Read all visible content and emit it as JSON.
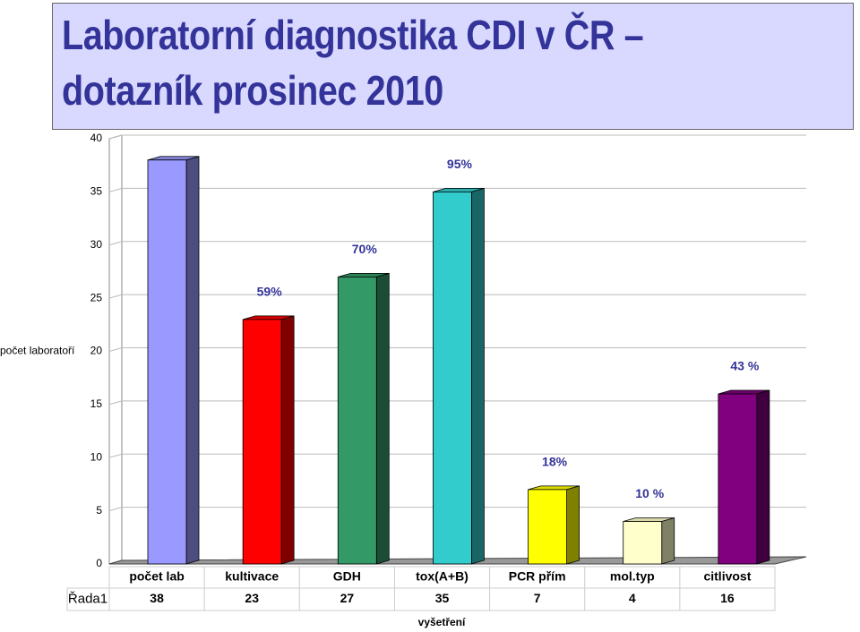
{
  "chart_data": {
    "type": "bar3d",
    "title": [
      "Laboratorní diagnostika CDI v ČR –",
      "dotazník prosinec 2010"
    ],
    "y_label": "počet laboratoří",
    "x_label": "vyšetření",
    "categories": [
      "počet lab",
      "kultivace",
      "GDH",
      "tox(A+B)",
      "PCR přím",
      "mol.typ",
      "citlivost"
    ],
    "series": [
      {
        "name": "Řada1",
        "values": [
          38,
          23,
          27,
          35,
          7,
          4,
          16
        ],
        "colors": [
          "#9999ff",
          "#ff0000",
          "#339966",
          "#33cccc",
          "#ffff00",
          "#ffffcc",
          "#800080"
        ]
      }
    ],
    "annotations": [
      null,
      "59%",
      "70%",
      "95%",
      "18%",
      "10 %",
      "43 %"
    ],
    "ylim": [
      0,
      40
    ],
    "yticks": [
      0,
      5,
      10,
      15,
      20,
      25,
      30,
      35,
      40
    ],
    "grid": true
  }
}
